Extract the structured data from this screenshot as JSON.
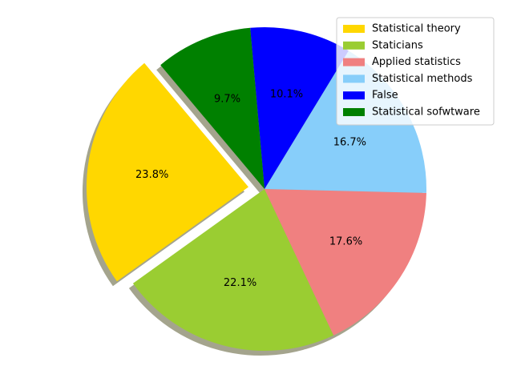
{
  "chart_data": {
    "type": "pie",
    "title": "",
    "categories": [
      "Statistical theory",
      "Staticians",
      "Applied statistics",
      "Statistical methods",
      "False",
      "Statistical sofwtware"
    ],
    "values": [
      23.8,
      22.1,
      17.6,
      16.7,
      10.1,
      9.7
    ],
    "labels": [
      "23.8%",
      "22.1%",
      "17.6%",
      "16.7%",
      "10.1%",
      "9.7%"
    ],
    "colors": [
      "#FFD700",
      "#9ACD32",
      "#F08080",
      "#87CEFA",
      "#0000FF",
      "#008000"
    ],
    "exploded": [
      true,
      false,
      false,
      false,
      false,
      false
    ],
    "shadow": true,
    "legend_position": "top-right"
  }
}
